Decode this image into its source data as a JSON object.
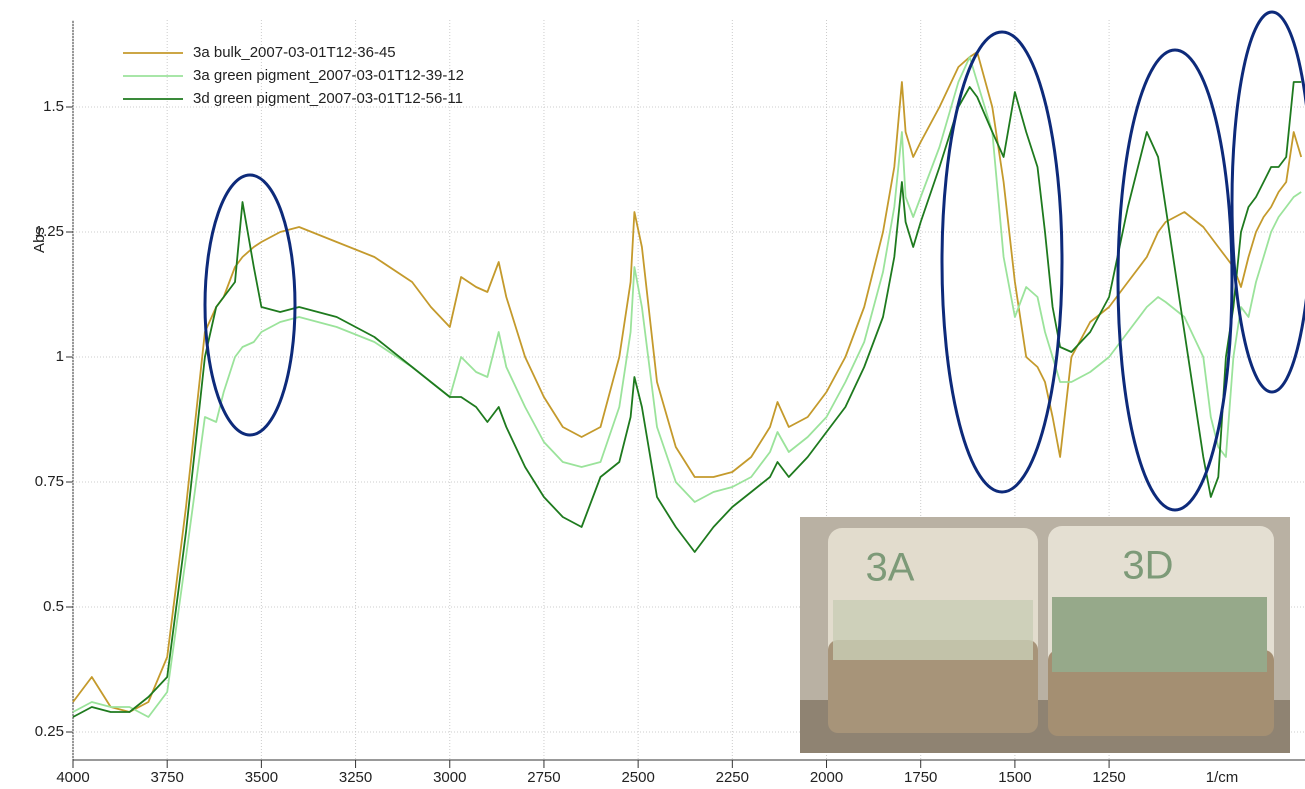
{
  "chart_data": {
    "type": "line",
    "xlabel": "1/cm",
    "ylabel": "Abs",
    "x": [
      4000,
      3950,
      3900,
      3850,
      3800,
      3750,
      3700,
      3650,
      3620,
      3600,
      3570,
      3550,
      3520,
      3500,
      3450,
      3400,
      3300,
      3200,
      3100,
      3050,
      3000,
      2970,
      2930,
      2900,
      2870,
      2850,
      2800,
      2750,
      2700,
      2650,
      2600,
      2550,
      2520,
      2510,
      2490,
      2450,
      2400,
      2350,
      2300,
      2250,
      2200,
      2150,
      2130,
      2100,
      2050,
      2000,
      1950,
      1900,
      1850,
      1820,
      1800,
      1790,
      1770,
      1750,
      1700,
      1650,
      1620,
      1600,
      1560,
      1530,
      1500,
      1470,
      1440,
      1420,
      1400,
      1380,
      1350,
      1300,
      1250,
      1200,
      1150,
      1120,
      1100,
      1050,
      1000,
      980,
      960,
      940,
      920,
      900,
      880,
      860,
      840,
      820,
      800,
      780,
      760,
      740
    ],
    "series": [
      {
        "name": "3a bulk_2007-03-01T12-36-45",
        "color": "#c49a2c",
        "values": [
          0.31,
          0.36,
          0.3,
          0.29,
          0.31,
          0.4,
          0.7,
          1.05,
          1.1,
          1.12,
          1.18,
          1.2,
          1.22,
          1.23,
          1.25,
          1.26,
          1.23,
          1.2,
          1.15,
          1.1,
          1.06,
          1.16,
          1.14,
          1.13,
          1.19,
          1.12,
          1.0,
          0.92,
          0.86,
          0.84,
          0.86,
          1.0,
          1.15,
          1.29,
          1.22,
          0.95,
          0.82,
          0.76,
          0.76,
          0.77,
          0.8,
          0.86,
          0.91,
          0.86,
          0.88,
          0.93,
          1.0,
          1.1,
          1.25,
          1.38,
          1.55,
          1.45,
          1.4,
          1.43,
          1.5,
          1.58,
          1.6,
          1.61,
          1.5,
          1.35,
          1.15,
          1.0,
          0.98,
          0.95,
          0.88,
          0.8,
          1.0,
          1.07,
          1.1,
          1.15,
          1.2,
          1.25,
          1.27,
          1.29,
          1.26,
          1.24,
          1.22,
          1.2,
          1.18,
          1.14,
          1.2,
          1.25,
          1.28,
          1.3,
          1.33,
          1.35,
          1.45,
          1.4
        ]
      },
      {
        "name": "3a green pigment_2007-03-01T12-39-12",
        "color": "#9be39b",
        "values": [
          0.29,
          0.31,
          0.3,
          0.3,
          0.28,
          0.33,
          0.6,
          0.88,
          0.87,
          0.93,
          1.0,
          1.02,
          1.03,
          1.05,
          1.07,
          1.08,
          1.06,
          1.03,
          0.98,
          0.95,
          0.92,
          1.0,
          0.97,
          0.96,
          1.05,
          0.98,
          0.9,
          0.83,
          0.79,
          0.78,
          0.79,
          0.9,
          1.05,
          1.18,
          1.1,
          0.86,
          0.75,
          0.71,
          0.73,
          0.74,
          0.76,
          0.81,
          0.85,
          0.81,
          0.84,
          0.88,
          0.95,
          1.03,
          1.17,
          1.3,
          1.45,
          1.32,
          1.28,
          1.32,
          1.42,
          1.55,
          1.6,
          1.55,
          1.45,
          1.2,
          1.08,
          1.14,
          1.12,
          1.05,
          1.0,
          0.95,
          0.95,
          0.97,
          1.0,
          1.05,
          1.1,
          1.12,
          1.11,
          1.08,
          1.0,
          0.88,
          0.82,
          0.8,
          1.0,
          1.1,
          1.08,
          1.15,
          1.2,
          1.25,
          1.28,
          1.3,
          1.32,
          1.33
        ]
      },
      {
        "name": "3d green pigment_2007-03-01T12-56-11",
        "color": "#1e7a1e",
        "values": [
          0.28,
          0.3,
          0.29,
          0.29,
          0.32,
          0.36,
          0.65,
          1.0,
          1.1,
          1.12,
          1.15,
          1.31,
          1.18,
          1.1,
          1.09,
          1.1,
          1.08,
          1.04,
          0.98,
          0.95,
          0.92,
          0.92,
          0.9,
          0.87,
          0.9,
          0.86,
          0.78,
          0.72,
          0.68,
          0.66,
          0.76,
          0.79,
          0.88,
          0.96,
          0.9,
          0.72,
          0.66,
          0.61,
          0.66,
          0.7,
          0.73,
          0.76,
          0.79,
          0.76,
          0.8,
          0.85,
          0.9,
          0.98,
          1.08,
          1.2,
          1.35,
          1.27,
          1.22,
          1.27,
          1.38,
          1.5,
          1.54,
          1.52,
          1.45,
          1.4,
          1.53,
          1.45,
          1.38,
          1.25,
          1.1,
          1.02,
          1.01,
          1.05,
          1.12,
          1.3,
          1.45,
          1.4,
          1.3,
          1.05,
          0.8,
          0.72,
          0.76,
          1.0,
          1.1,
          1.25,
          1.3,
          1.32,
          1.35,
          1.38,
          1.38,
          1.4,
          1.55,
          1.55
        ]
      }
    ],
    "xlim": [
      4000,
      730
    ],
    "xticks": [
      4000,
      3750,
      3500,
      3250,
      3000,
      2750,
      2500,
      2250,
      2000,
      1750,
      1500,
      1250
    ],
    "ylim": [
      0.194,
      1.674
    ],
    "yticks": [
      0.25,
      0.5,
      0.75,
      1,
      1.25,
      1.5
    ],
    "grid": true,
    "legend": "upper left",
    "photo_labels": [
      "3A",
      "3D"
    ]
  }
}
